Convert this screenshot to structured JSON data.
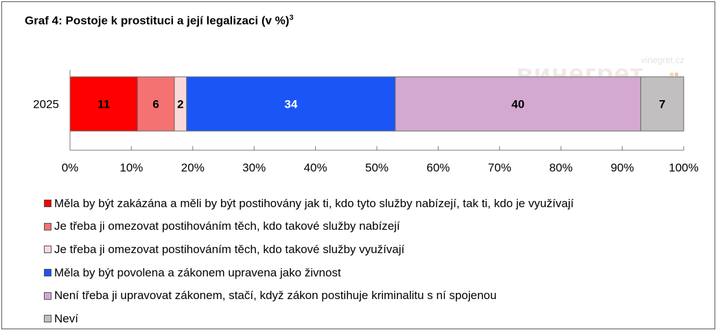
{
  "title": "Graf 4: Postoje k prostituci a její legalizaci (v %)",
  "title_footnote": "3",
  "watermark": {
    "text": "винегрет",
    "site": "vinegret.cz"
  },
  "chart_data": {
    "type": "bar",
    "orientation": "horizontal",
    "stacked": true,
    "categories": [
      "2025"
    ],
    "series": [
      {
        "name": "Měla by být zakázána a měli by být postihovány jak ti, kdo tyto služby nabízejí, tak ti, kdo je využívají",
        "values": [
          11
        ],
        "color": "#ff0000"
      },
      {
        "name": "Je třeba ji omezovat postihováním těch, kdo takové služby nabízejí",
        "values": [
          6
        ],
        "color": "#f47272"
      },
      {
        "name": "Je třeba ji omezovat postihováním těch, kdo takové služby využívají",
        "values": [
          2
        ],
        "color": "#fcd9d9"
      },
      {
        "name": "Měla by být povolena a zákonem upravena jako živnost",
        "values": [
          34
        ],
        "color": "#1a56f5"
      },
      {
        "name": "Není třeba ji upravovat zákonem, stačí, když zákon postihuje kriminalitu s ní spojenou",
        "values": [
          40
        ],
        "color": "#d4a9d1"
      },
      {
        "name": "Neví",
        "values": [
          7
        ],
        "color": "#c1bfbf"
      }
    ],
    "label_colors": [
      "#000000",
      "#000000",
      "#000000",
      "#ffffff",
      "#000000",
      "#000000"
    ],
    "xlim": [
      0,
      100
    ],
    "xticks": [
      "0%",
      "10%",
      "20%",
      "30%",
      "40%",
      "50%",
      "60%",
      "70%",
      "80%",
      "90%",
      "100%"
    ],
    "grid": false,
    "legend_position": "bottom"
  }
}
